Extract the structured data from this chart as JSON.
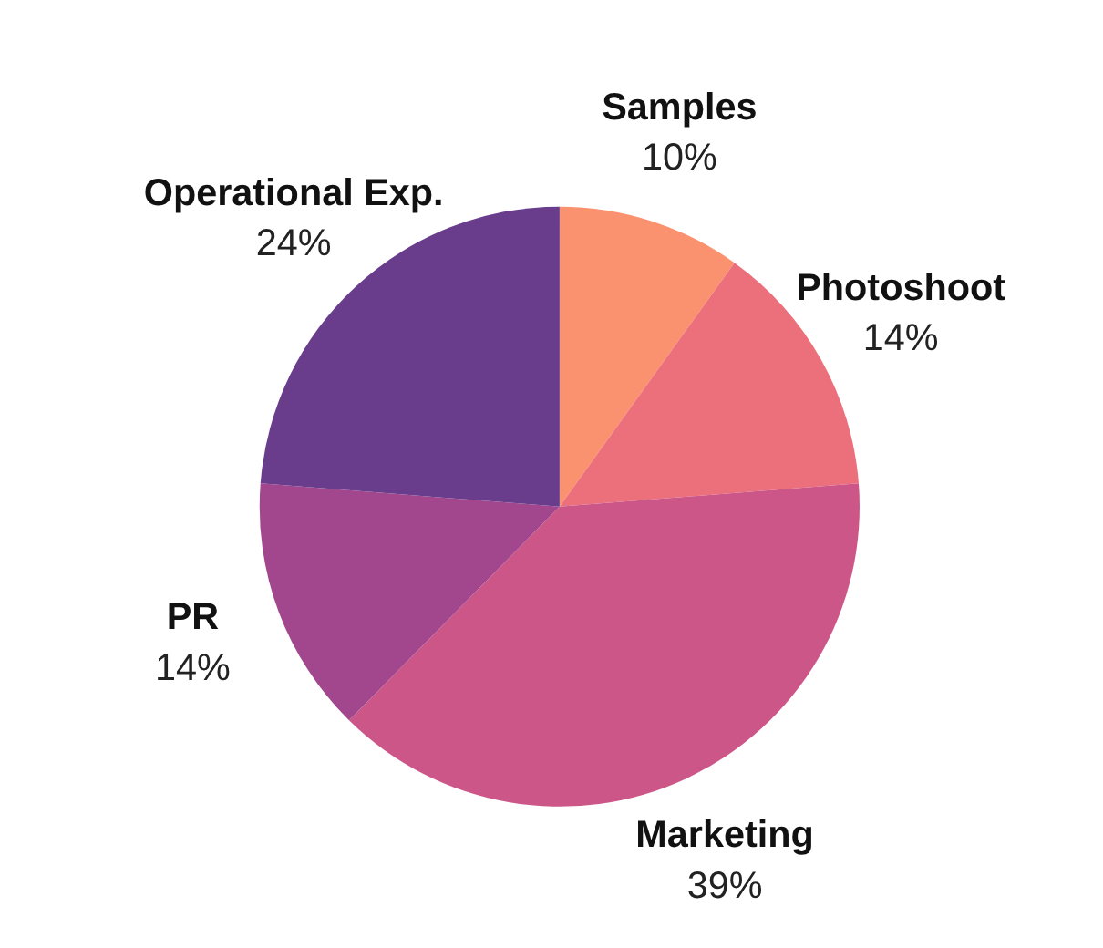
{
  "chart_data": {
    "type": "pie",
    "categories": [
      "Samples",
      "Photoshoot",
      "Marketing",
      "PR",
      "Operational Exp."
    ],
    "values": [
      10,
      14,
      39,
      14,
      24
    ],
    "value_labels": [
      "10%",
      "14%",
      "39%",
      "14%",
      "24%"
    ],
    "colors": [
      "#fb926f",
      "#eb707b",
      "#cd5689",
      "#a2478e",
      "#693d8c"
    ],
    "legend": false
  }
}
